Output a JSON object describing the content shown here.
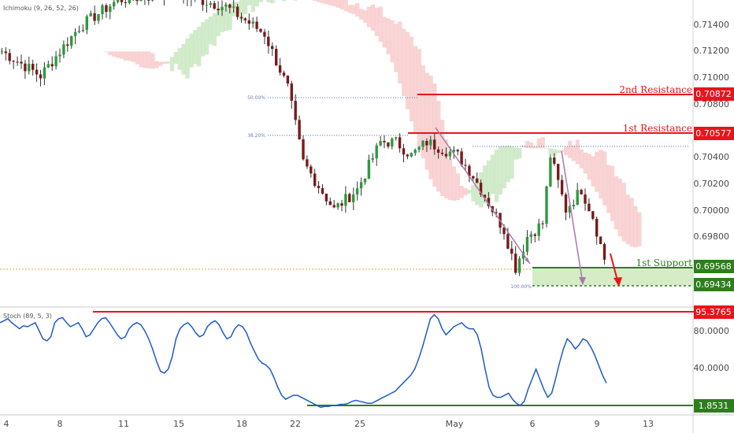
{
  "chart_data": [
    {
      "type": "candlestick",
      "indicator": "Ichimoku (9, 26, 52, 26)",
      "y_ticks": [
        "0.71400",
        "0.71200",
        "0.71000",
        "0.70800",
        "0.70400",
        "0.70200",
        "0.70000",
        "0.69800"
      ],
      "ylim": [
        0.6933,
        0.716
      ],
      "x_ticks": [
        "4",
        "8",
        "11",
        "15",
        "18",
        "22",
        "25",
        "May",
        "6",
        "9",
        "13"
      ],
      "levels": {
        "r2": {
          "label": "2nd Resistance",
          "value": "0.70872",
          "color": "#e8141c"
        },
        "r1": {
          "label": "1st Resistance",
          "value": "0.70577",
          "color": "#e8141c"
        },
        "s1": {
          "label": "1st Support",
          "value": "0.69568",
          "color": "#2e7d1e"
        },
        "s2": {
          "value": "0.69434",
          "color": "#2e7d1e"
        }
      },
      "fib_labels": {
        "f50": "50.00%",
        "f38": "38.20%",
        "f100": "100.00%"
      },
      "price_anchors": [
        {
          "bar": 0,
          "price": 0.7122
        },
        {
          "bar": 10,
          "price": 0.7104
        },
        {
          "bar": 20,
          "price": 0.714
        },
        {
          "bar": 30,
          "price": 0.716
        },
        {
          "bar": 45,
          "price": 0.7165
        },
        {
          "bar": 58,
          "price": 0.7155
        },
        {
          "bar": 68,
          "price": 0.7135
        },
        {
          "bar": 74,
          "price": 0.7095
        },
        {
          "bar": 78,
          "price": 0.704
        },
        {
          "bar": 86,
          "price": 0.7005
        },
        {
          "bar": 92,
          "price": 0.702
        },
        {
          "bar": 98,
          "price": 0.7055
        },
        {
          "bar": 102,
          "price": 0.7055
        },
        {
          "bar": 106,
          "price": 0.7045
        },
        {
          "bar": 110,
          "price": 0.7055
        },
        {
          "bar": 118,
          "price": 0.7045
        },
        {
          "bar": 122,
          "price": 0.703
        },
        {
          "bar": 126,
          "price": 0.701
        },
        {
          "bar": 130,
          "price": 0.699
        },
        {
          "bar": 133,
          "price": 0.6962
        },
        {
          "bar": 136,
          "price": 0.6985
        },
        {
          "bar": 140,
          "price": 0.6995
        },
        {
          "bar": 142,
          "price": 0.7045
        },
        {
          "bar": 146,
          "price": 0.7005
        },
        {
          "bar": 150,
          "price": 0.702
        },
        {
          "bar": 153,
          "price": 0.7
        },
        {
          "bar": 156,
          "price": 0.6968
        }
      ]
    },
    {
      "type": "line",
      "indicator": "Stoch (89, 5, 3)",
      "y_ticks": [
        "80.0000",
        "40.0000"
      ],
      "ylim": [
        0,
        100
      ],
      "levels": {
        "high": "95.3765",
        "low": "1.8531"
      },
      "series": [
        {
          "values": [
            86,
            88,
            90,
            86,
            83,
            80,
            83,
            82,
            84,
            86,
            78,
            70,
            68,
            72,
            86,
            90,
            91,
            86,
            82,
            84,
            86,
            80,
            72,
            74,
            80,
            86,
            90,
            91,
            86,
            80,
            74,
            70,
            72,
            80,
            84,
            86,
            84,
            78,
            70,
            60,
            48,
            38,
            36,
            40,
            52,
            70,
            80,
            84,
            86,
            82,
            76,
            72,
            74,
            82,
            86,
            88,
            84,
            76,
            70,
            72,
            80,
            84,
            82,
            76,
            66,
            58,
            50,
            46,
            44,
            40,
            32,
            22,
            14,
            10,
            12,
            14,
            14,
            12,
            10,
            8,
            6,
            4,
            2,
            3,
            3,
            4,
            4,
            5,
            5,
            6,
            8,
            9,
            8,
            7,
            6,
            6,
            8,
            10,
            12,
            14,
            16,
            18,
            22,
            26,
            30,
            34,
            40,
            50,
            62,
            76,
            90,
            94,
            90,
            80,
            74,
            78,
            82,
            84,
            86,
            82,
            80,
            80,
            74,
            60,
            40,
            22,
            14,
            12,
            12,
            14,
            16,
            10,
            6,
            4,
            8,
            20,
            30,
            40,
            30,
            20,
            12,
            16,
            30,
            46,
            60,
            70,
            66,
            60,
            64,
            70,
            68,
            62,
            54,
            44,
            34,
            26
          ]
        }
      ]
    }
  ]
}
